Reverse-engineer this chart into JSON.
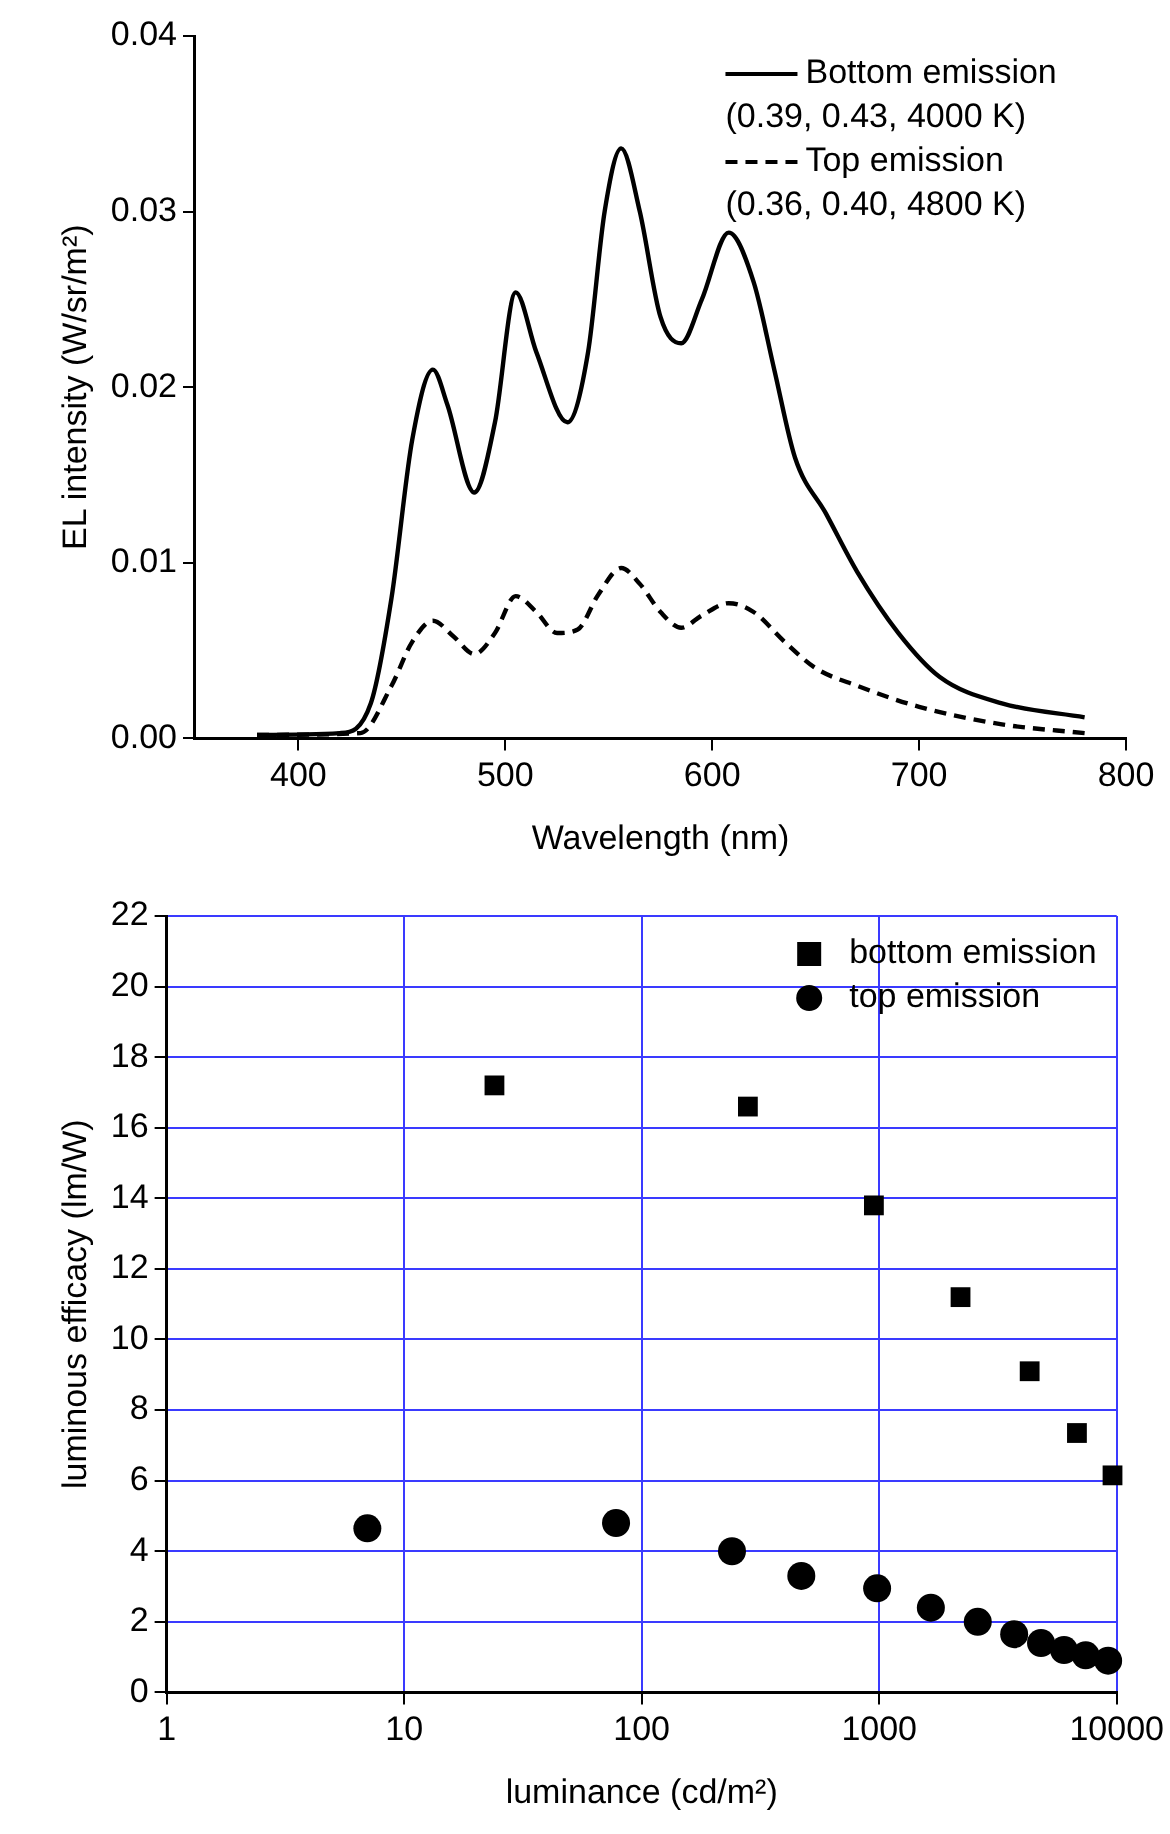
{
  "chart_data": [
    {
      "type": "line",
      "xlabel": "Wavelength (nm)",
      "ylabel": "EL intensity (W/sr/m²)",
      "xlim": [
        350,
        800
      ],
      "xticks": [
        400,
        500,
        600,
        700,
        800
      ],
      "ylim": [
        0,
        0.04
      ],
      "yticks": [
        {
          "value": 0,
          "label": "0.00"
        },
        {
          "value": 0.01,
          "label": "0.01"
        },
        {
          "value": 0.02,
          "label": "0.02"
        },
        {
          "value": 0.03,
          "label": "0.03"
        },
        {
          "value": 0.04,
          "label": "0.04"
        }
      ],
      "legend": "top right",
      "marker": "none",
      "series": [
        {
          "name": "Bottom emission\n(0.39, 0.43, 4000 K)",
          "color": "#000000",
          "line_style": "solid",
          "x": [
            380,
            420,
            435,
            445,
            455,
            465,
            472,
            485,
            495,
            505,
            515,
            530,
            540,
            548,
            556,
            565,
            575,
            585,
            595,
            608,
            620,
            630,
            640,
            655,
            670,
            690,
            710,
            740,
            780
          ],
          "values": [
            0.0002,
            0.0003,
            0.002,
            0.008,
            0.017,
            0.021,
            0.019,
            0.014,
            0.018,
            0.0254,
            0.022,
            0.018,
            0.022,
            0.03,
            0.0336,
            0.03,
            0.024,
            0.0225,
            0.025,
            0.0288,
            0.026,
            0.021,
            0.016,
            0.0128,
            0.0095,
            0.006,
            0.0035,
            0.002,
            0.0012
          ]
        },
        {
          "name": "Top emission\n(0.36, 0.40, 4800 K)",
          "color": "#000000",
          "line_style": "dashed",
          "x": [
            380,
            430,
            445,
            455,
            465,
            475,
            485,
            495,
            505,
            515,
            525,
            535,
            545,
            556,
            565,
            575,
            585,
            595,
            608,
            620,
            635,
            650,
            670,
            700,
            740,
            780
          ],
          "values": [
            0.0002,
            0.0003,
            0.003,
            0.0055,
            0.0067,
            0.0058,
            0.0048,
            0.006,
            0.0081,
            0.0072,
            0.006,
            0.0062,
            0.0082,
            0.0097,
            0.0088,
            0.0072,
            0.0063,
            0.007,
            0.0077,
            0.0072,
            0.0055,
            0.004,
            0.003,
            0.0018,
            0.0008,
            0.0003
          ]
        }
      ]
    },
    {
      "type": "scatter",
      "xlabel": "luminance (cd/m²)",
      "ylabel": "luminous efficacy (lm/W)",
      "log": "x",
      "xlim": [
        1,
        10000
      ],
      "xticks": [
        1,
        10,
        100,
        1000,
        10000
      ],
      "ylim": [
        0,
        22
      ],
      "yticks": [
        0,
        2,
        4,
        6,
        8,
        10,
        12,
        14,
        16,
        18,
        20,
        22
      ],
      "grid": true,
      "legend": "top right",
      "series": [
        {
          "name": "bottom emission",
          "color": "#000000",
          "marker": "square",
          "x": [
            24,
            280,
            950,
            2200,
            4300,
            6800,
            9600
          ],
          "values": [
            17.2,
            16.6,
            13.8,
            11.2,
            9.1,
            7.35,
            6.15
          ]
        },
        {
          "name": "top emission",
          "color": "#000000",
          "marker": "circle",
          "x": [
            7,
            78,
            240,
            470,
            980,
            1650,
            2600,
            3700,
            4800,
            6000,
            7400,
            9200
          ],
          "values": [
            4.65,
            4.8,
            4.0,
            3.3,
            2.95,
            2.4,
            2.0,
            1.65,
            1.4,
            1.2,
            1.05,
            0.9
          ]
        }
      ]
    }
  ]
}
